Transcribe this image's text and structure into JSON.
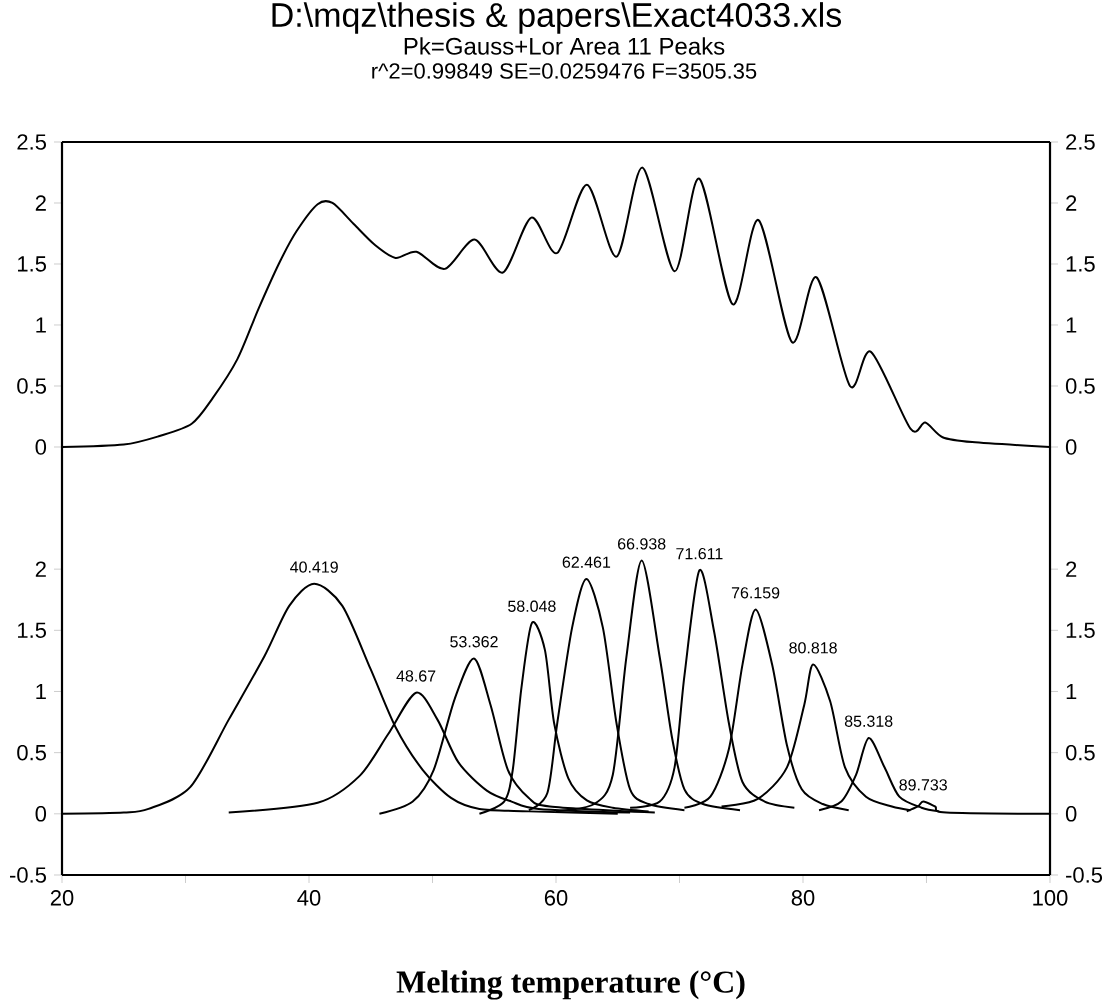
{
  "chart_data": [
    {
      "type": "line",
      "title": "D:\\mqz\\thesis & papers\\Exact4033.xls",
      "subtitle": "Pk=Gauss+Lor Area  11 Peaks",
      "annotations": [
        "r^2=0.99849  SE=0.0259476  F=3505.35"
      ],
      "xlim": [
        20,
        100
      ],
      "ylim": [
        -0.5,
        2.5
      ],
      "yticks": [
        0,
        0.5,
        1,
        1.5,
        2,
        2.5
      ],
      "y2lim": [
        -0.5,
        2.5
      ],
      "y2ticks": [
        0,
        0.5,
        1,
        1.5,
        2,
        2.5
      ],
      "tick_labels": "y",
      "series": [
        {
          "color": "#000000",
          "x": [
            20,
            25.0,
            27.9,
            30.5,
            32.2,
            34.2,
            35.9,
            37.6,
            39.0,
            40.7,
            41.9,
            43.6,
            45.3,
            47.0,
            48.7,
            51.0,
            53.4,
            55.7,
            58.0,
            60.1,
            62.5,
            64.9,
            67.0,
            69.6,
            71.6,
            74.3,
            76.4,
            79.1,
            81.1,
            83.8,
            85.5,
            88.7,
            89.9,
            91.3,
            93.7,
            100
          ],
          "values": [
            0,
            0.02,
            0.09,
            0.19,
            0.4,
            0.72,
            1.13,
            1.51,
            1.77,
            1.99,
            2.0,
            1.83,
            1.66,
            1.55,
            1.6,
            1.46,
            1.7,
            1.43,
            1.88,
            1.59,
            2.15,
            1.56,
            2.29,
            1.44,
            2.2,
            1.17,
            1.86,
            0.86,
            1.39,
            0.5,
            0.78,
            0.15,
            0.2,
            0.08,
            0.04,
            0.0
          ]
        }
      ]
    },
    {
      "type": "line",
      "xlabel": "Melting temperature  (°C)",
      "xlim": [
        20,
        100
      ],
      "xticks": [
        20,
        {
          "value": 30,
          "label": null
        },
        40,
        {
          "value": 50,
          "label": null
        },
        60,
        {
          "value": 70,
          "label": null
        },
        80,
        {
          "value": 90,
          "label": null
        },
        100
      ],
      "ylim": [
        -0.5,
        2.5
      ],
      "yticks": [
        -0.5,
        0,
        0.5,
        1,
        1.5,
        2
      ],
      "y2lim": [
        -0.5,
        2.5
      ],
      "y2ticks": [
        -0.5,
        0,
        0.5,
        1,
        1.5,
        2
      ],
      "annotations": [
        {
          "text": "40.419",
          "x": 40.419,
          "y": 1.88
        },
        {
          "text": "48.67",
          "x": 48.67,
          "y": 0.99
        },
        {
          "text": "53.362",
          "x": 53.362,
          "y": 1.27
        },
        {
          "text": "58.048",
          "x": 58.048,
          "y": 1.56
        },
        {
          "text": "62.461",
          "x": 62.461,
          "y": 1.92
        },
        {
          "text": "66.938",
          "x": 66.938,
          "y": 2.07
        },
        {
          "text": "71.611",
          "x": 71.611,
          "y": 1.99
        },
        {
          "text": "76.159",
          "x": 76.159,
          "y": 1.67
        },
        {
          "text": "80.818",
          "x": 80.818,
          "y": 1.22
        },
        {
          "text": "85.318",
          "x": 85.318,
          "y": 0.62
        },
        {
          "text": "89.733",
          "x": 89.733,
          "y": 0.1
        }
      ],
      "series": [
        {
          "color": "#000000",
          "x": [
            20,
            25.0,
            27.0,
            30.4,
            33.5,
            36.4,
            38.4,
            40.419,
            42.7,
            45.0,
            47.0,
            49.2,
            51.5,
            53.8,
            57.8,
            65.0
          ],
          "values": [
            0,
            0.01,
            0.04,
            0.22,
            0.77,
            1.29,
            1.7,
            1.88,
            1.7,
            1.18,
            0.71,
            0.36,
            0.13,
            0.04,
            0.02,
            0
          ]
        },
        {
          "color": "#000000",
          "x": [
            33.5,
            40.7,
            44.1,
            46.4,
            48.67,
            50.4,
            52.1,
            54.4,
            56.4,
            58.6,
            66.0
          ],
          "values": [
            0.01,
            0.09,
            0.31,
            0.65,
            0.99,
            0.77,
            0.42,
            0.19,
            0.1,
            0.04,
            0.01
          ]
        },
        {
          "color": "#000000",
          "x": [
            45.7,
            48.4,
            50.1,
            51.8,
            53.362,
            54.7,
            56.1,
            57.8,
            59.5,
            68.0
          ],
          "values": [
            0.0,
            0.1,
            0.36,
            0.94,
            1.27,
            0.89,
            0.36,
            0.13,
            0.06,
            0.01
          ]
        },
        {
          "color": "#000000",
          "x": [
            53.8,
            55.8,
            56.5,
            57.2,
            58.048,
            59.1,
            59.85,
            61.0,
            62.5,
            64.6,
            67.5
          ],
          "values": [
            0.0,
            0.1,
            0.36,
            1.03,
            1.56,
            1.34,
            0.74,
            0.29,
            0.11,
            0.05,
            0.02
          ]
        },
        {
          "color": "#000000",
          "x": [
            57.8,
            59.3,
            60.1,
            61.3,
            62.461,
            63.8,
            64.9,
            66.0,
            67.5,
            70.4
          ],
          "values": [
            0.03,
            0.17,
            0.74,
            1.52,
            1.92,
            1.52,
            0.74,
            0.2,
            0.08,
            0.03
          ]
        },
        {
          "color": "#000000",
          "x": [
            60.0,
            63.1,
            64.6,
            65.7,
            66.938,
            68.4,
            69.4,
            70.4,
            71.9,
            74.9
          ],
          "values": [
            0.02,
            0.08,
            0.32,
            1.28,
            2.07,
            1.28,
            0.62,
            0.2,
            0.08,
            0.03
          ]
        },
        {
          "color": "#000000",
          "x": [
            66.0,
            68.4,
            69.6,
            70.4,
            71.611,
            72.8,
            74.0,
            75.1,
            76.9,
            79.3
          ],
          "values": [
            0.05,
            0.1,
            0.38,
            1.13,
            1.99,
            1.49,
            0.74,
            0.26,
            0.1,
            0.05
          ]
        },
        {
          "color": "#000000",
          "x": [
            70.4,
            72.5,
            74.0,
            75.1,
            76.159,
            77.5,
            78.7,
            79.9,
            81.6,
            83.7
          ],
          "values": [
            0.05,
            0.14,
            0.53,
            1.22,
            1.67,
            1.22,
            0.56,
            0.2,
            0.08,
            0.03
          ]
        },
        {
          "color": "#000000",
          "x": [
            73.4,
            76.3,
            78.7,
            80.1,
            80.818,
            82.2,
            83.4,
            85.1,
            87.2,
            88.7
          ],
          "values": [
            0.06,
            0.12,
            0.38,
            0.89,
            1.22,
            0.92,
            0.38,
            0.14,
            0.06,
            0.03
          ]
        },
        {
          "color": "#000000",
          "x": [
            81.3,
            83.1,
            84.3,
            85.318,
            86.6,
            87.8,
            89.6,
            91.0
          ],
          "values": [
            0.03,
            0.1,
            0.32,
            0.62,
            0.38,
            0.14,
            0.05,
            0.02
          ]
        },
        {
          "color": "#000000",
          "x": [
            88.4,
            89.3,
            89.733,
            90.7,
            91.6,
            100
          ],
          "values": [
            0.02,
            0.06,
            0.1,
            0.06,
            0.01,
            0
          ]
        }
      ]
    }
  ]
}
